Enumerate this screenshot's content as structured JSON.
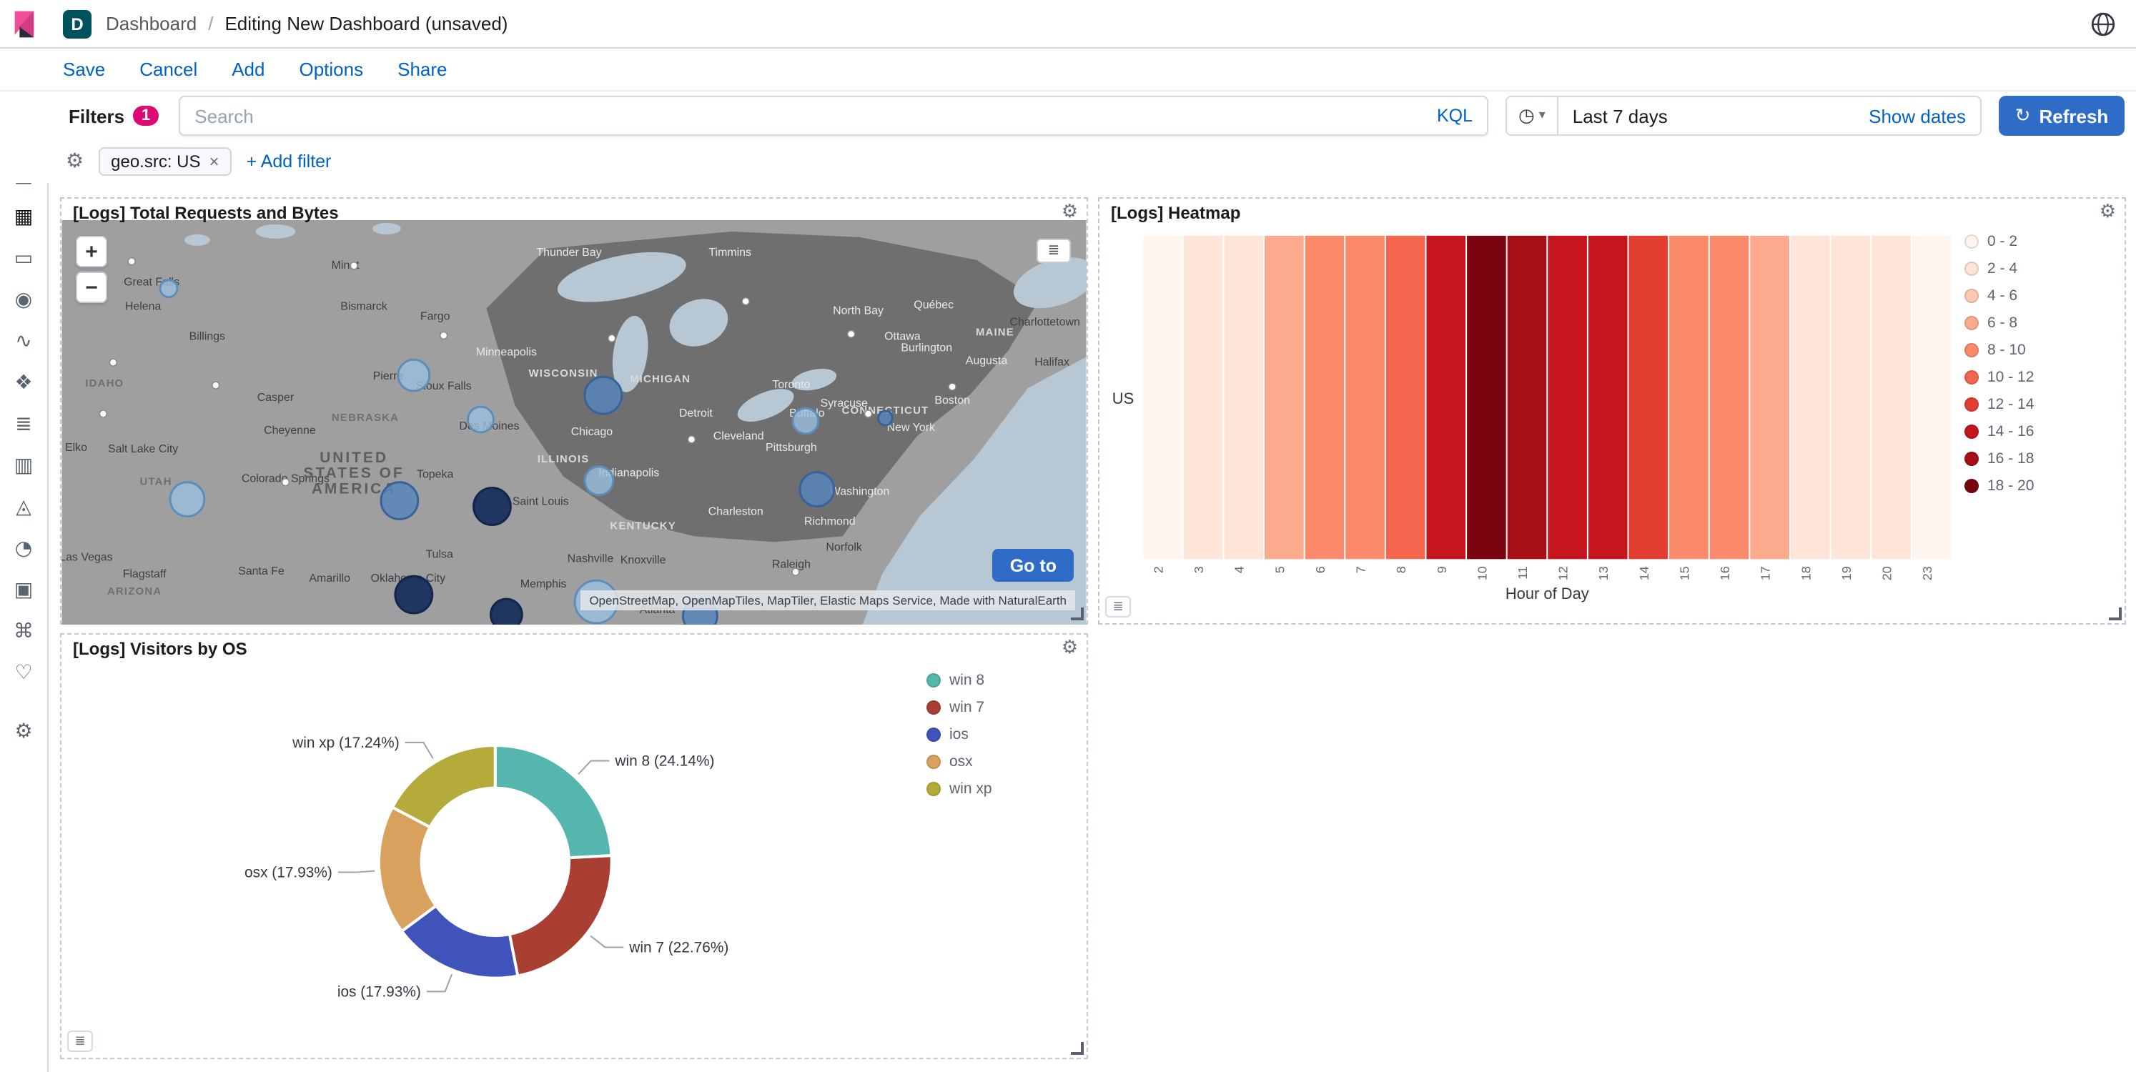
{
  "colors": {
    "primary": "#2e6cc8",
    "accent": "#dd0a73",
    "link": "#0061c5",
    "border": "#d3dae6",
    "text": "#343741",
    "subdued": "#69707d"
  },
  "header": {
    "space_badge": "D",
    "breadcrumbs": [
      "Dashboard",
      "Editing New Dashboard (unsaved)"
    ],
    "separator": "/"
  },
  "menu": {
    "items": [
      "Save",
      "Cancel",
      "Add",
      "Options",
      "Share"
    ]
  },
  "query_bar": {
    "filters_label": "Filters",
    "filters_count": "1",
    "search_placeholder": "Search",
    "kql_label": "KQL",
    "date_range": "Last 7 days",
    "show_dates_label": "Show dates",
    "refresh_label": "Refresh"
  },
  "filter_bar": {
    "pill_label": "geo.src: US",
    "add_filter_label": "+ Add filter"
  },
  "icons": {
    "gear": "⚙",
    "legend": "≣",
    "chevron_down": "▾",
    "clock": "◷",
    "refresh": "↻",
    "close": "×"
  },
  "sidebar": {
    "items": [
      {
        "name": "recent",
        "glyph": "◷"
      },
      {
        "name": "discover",
        "glyph": "◎"
      },
      {
        "name": "visualize",
        "glyph": "▤"
      },
      {
        "name": "dashboard",
        "glyph": "▦",
        "active": true
      },
      {
        "name": "canvas",
        "glyph": "▭"
      },
      {
        "name": "maps",
        "glyph": "◉"
      },
      {
        "name": "machine-learning",
        "glyph": "∿"
      },
      {
        "name": "graph",
        "glyph": "❖"
      },
      {
        "name": "logs",
        "glyph": "≣"
      },
      {
        "name": "metrics",
        "glyph": "▥"
      },
      {
        "name": "apm",
        "glyph": "◬"
      },
      {
        "name": "uptime",
        "glyph": "◔"
      },
      {
        "name": "siem",
        "glyph": "▣"
      },
      {
        "name": "dev-tools",
        "glyph": "⌘"
      },
      {
        "name": "monitoring",
        "glyph": "♡"
      }
    ],
    "management": {
      "name": "management",
      "glyph": "⚙"
    }
  },
  "panels": {
    "map": {
      "title": "[Logs] Total Requests and Bytes",
      "goto_label": "Go to",
      "attribution": "OpenStreetMap, OpenMapTiles, MapTiler, Elastic Maps Service, Made with NaturalEarth",
      "zoom_in": "+",
      "zoom_out": "−",
      "colors": {
        "water": "#b7c7d3",
        "land": "#9f9f9f",
        "region": "#6f6f6f"
      },
      "circles": [
        [
          75,
          48,
          6,
          "light"
        ],
        [
          247,
          109,
          11,
          "light"
        ],
        [
          294,
          140,
          9,
          "light"
        ],
        [
          88,
          196,
          12,
          "light"
        ],
        [
          377,
          183,
          10,
          "light"
        ],
        [
          522,
          141,
          9,
          "light"
        ],
        [
          375,
          268,
          15,
          "light"
        ],
        [
          380,
          123,
          13,
          "mid"
        ],
        [
          237,
          197,
          13,
          "mid"
        ],
        [
          530,
          189,
          12,
          "mid"
        ],
        [
          448,
          278,
          12,
          "mid"
        ],
        [
          578,
          139,
          5,
          "mid"
        ],
        [
          302,
          201,
          13,
          "dark"
        ],
        [
          247,
          263,
          13,
          "dark"
        ],
        [
          312,
          277,
          11,
          "dark"
        ]
      ],
      "dots": [
        [
          29,
          136
        ],
        [
          49,
          29
        ],
        [
          108,
          116
        ],
        [
          157,
          184
        ],
        [
          268,
          81
        ],
        [
          386,
          83
        ],
        [
          442,
          154
        ],
        [
          515,
          247
        ],
        [
          566,
          136
        ],
        [
          554,
          80
        ],
        [
          205,
          32
        ],
        [
          480,
          57
        ],
        [
          36,
          100
        ],
        [
          625,
          117
        ]
      ],
      "labels": [
        [
          63,
          46,
          "Great Falls",
          "city"
        ],
        [
          57,
          63,
          "Helena",
          "city"
        ],
        [
          102,
          84,
          "Billings",
          "city"
        ],
        [
          199,
          34,
          "Minot",
          "city"
        ],
        [
          212,
          63,
          "Bismarck",
          "city"
        ],
        [
          262,
          70,
          "Fargo",
          "city"
        ],
        [
          229,
          112,
          "Pierre",
          "city"
        ],
        [
          268,
          119,
          "Sioux Falls",
          "city"
        ],
        [
          150,
          127,
          "Casper",
          "city"
        ],
        [
          160,
          150,
          "Cheyenne",
          "city"
        ],
        [
          57,
          163,
          "Salt Lake City",
          "city"
        ],
        [
          10,
          162,
          "Elko",
          "city"
        ],
        [
          157,
          184,
          "Colorado Springs",
          "city"
        ],
        [
          262,
          181,
          "Topeka",
          "city"
        ],
        [
          336,
          200,
          "Saint Louis",
          "city"
        ],
        [
          300,
          147,
          "Des Moines",
          "city"
        ],
        [
          140,
          249,
          "Santa Fe",
          "city"
        ],
        [
          188,
          254,
          "Amarillo",
          "city"
        ],
        [
          58,
          251,
          "Flagstaff",
          "city"
        ],
        [
          17,
          239,
          "Las Vegas",
          "city"
        ],
        [
          265,
          237,
          "Tulsa",
          "city"
        ],
        [
          243,
          254,
          "Oklahoma City",
          "city"
        ],
        [
          338,
          258,
          "Memphis",
          "city"
        ],
        [
          371,
          240,
          "Nashville",
          "city"
        ],
        [
          408,
          241,
          "Knoxville",
          "city"
        ],
        [
          418,
          276,
          "Atlanta",
          "city"
        ],
        [
          512,
          244,
          "Raleigh",
          "city"
        ],
        [
          690,
          74,
          "Charlottetown",
          "city"
        ],
        [
          695,
          102,
          "Halifax",
          "city"
        ],
        [
          549,
          232,
          "Norfolk",
          "city"
        ],
        [
          356,
          25,
          "Thunder Bay",
          "cityL"
        ],
        [
          469,
          25,
          "Timmins",
          "cityL"
        ],
        [
          612,
          62,
          "Québec",
          "cityL"
        ],
        [
          559,
          66,
          "North Bay",
          "cityL"
        ],
        [
          590,
          84,
          "Ottawa",
          "cityL"
        ],
        [
          607,
          92,
          "Burlington",
          "cityL"
        ],
        [
          649,
          101,
          "Augusta",
          "cityL"
        ],
        [
          312,
          95,
          "Minneapolis",
          "cityL"
        ],
        [
          512,
          118,
          "Toronto",
          "cityL"
        ],
        [
          523,
          138,
          "Buffalo",
          "cityL"
        ],
        [
          549,
          131,
          "Syracuse",
          "cityL"
        ],
        [
          625,
          129,
          "Boston",
          "cityL"
        ],
        [
          596,
          148,
          "New York",
          "cityL"
        ],
        [
          372,
          151,
          "Chicago",
          "cityL"
        ],
        [
          445,
          138,
          "Detroit",
          "cityL"
        ],
        [
          475,
          154,
          "Cleveland",
          "cityL"
        ],
        [
          512,
          162,
          "Pittsburgh",
          "cityL"
        ],
        [
          398,
          180,
          "Indianapolis",
          "cityL"
        ],
        [
          560,
          193,
          "Washington",
          "cityL"
        ],
        [
          473,
          207,
          "Charleston",
          "cityL"
        ],
        [
          539,
          214,
          "Richmond",
          "cityL"
        ],
        [
          213,
          141,
          "NEBRASKA",
          "state"
        ],
        [
          66,
          186,
          "UTAH",
          "state"
        ],
        [
          30,
          117,
          "IDAHO",
          "state"
        ],
        [
          51,
          263,
          "ARIZONA",
          "state"
        ],
        [
          352,
          110,
          "WISCONSIN",
          "stateL"
        ],
        [
          420,
          114,
          "MICHIGAN",
          "stateL"
        ],
        [
          352,
          170,
          "ILLINOIS",
          "stateL"
        ],
        [
          408,
          217,
          "KENTUCKY",
          "stateL"
        ],
        [
          655,
          81,
          "MAINE",
          "stateL"
        ],
        [
          578,
          136,
          "CONNECTICUT",
          "stateL"
        ],
        [
          205,
          170,
          "UNITED",
          "country"
        ],
        [
          205,
          181,
          "STATES OF",
          "country"
        ],
        [
          205,
          192,
          "AMERICA",
          "country"
        ]
      ]
    }
  },
  "chart_data": [
    {
      "type": "heatmap",
      "title": "[Logs] Heatmap",
      "rows": [
        "US"
      ],
      "x": [
        "2",
        "3",
        "4",
        "5",
        "6",
        "7",
        "8",
        "9",
        "10",
        "11",
        "12",
        "13",
        "14",
        "15",
        "16",
        "17",
        "18",
        "19",
        "20",
        "23"
      ],
      "values": [
        [
          1,
          2.5,
          3,
          6.5,
          8.5,
          9,
          11,
          15,
          19,
          17,
          15,
          14.5,
          13,
          9,
          8.5,
          6.5,
          3.5,
          2.5,
          2.5,
          1
        ]
      ],
      "xlabel": "Hour of Day",
      "ylabel": "",
      "bucket_size": 2,
      "colors": [
        "#fff5f0",
        "#fee5d8",
        "#fdc9b0",
        "#fcaa8d",
        "#fb8a6a",
        "#f4674e",
        "#e23e32",
        "#c5161d",
        "#a50f15",
        "#7a040f"
      ],
      "legend_labels": [
        "0 - 2",
        "2 - 4",
        "4 - 6",
        "6 - 8",
        "8 - 10",
        "10 - 12",
        "12 - 14",
        "14 - 16",
        "16 - 18",
        "18 - 20"
      ],
      "legend_position": "right",
      "grid": false
    },
    {
      "type": "pie",
      "title": "[Logs] Visitors by OS",
      "donut": true,
      "labels": [
        "win 8",
        "win 7",
        "ios",
        "osx",
        "win xp"
      ],
      "values": [
        24.14,
        22.76,
        17.93,
        17.93,
        17.24
      ],
      "colors": [
        "#55b6ae",
        "#a93e32",
        "#4053ba",
        "#d9a15e",
        "#b5ab3a"
      ],
      "legend_position": "right"
    }
  ]
}
